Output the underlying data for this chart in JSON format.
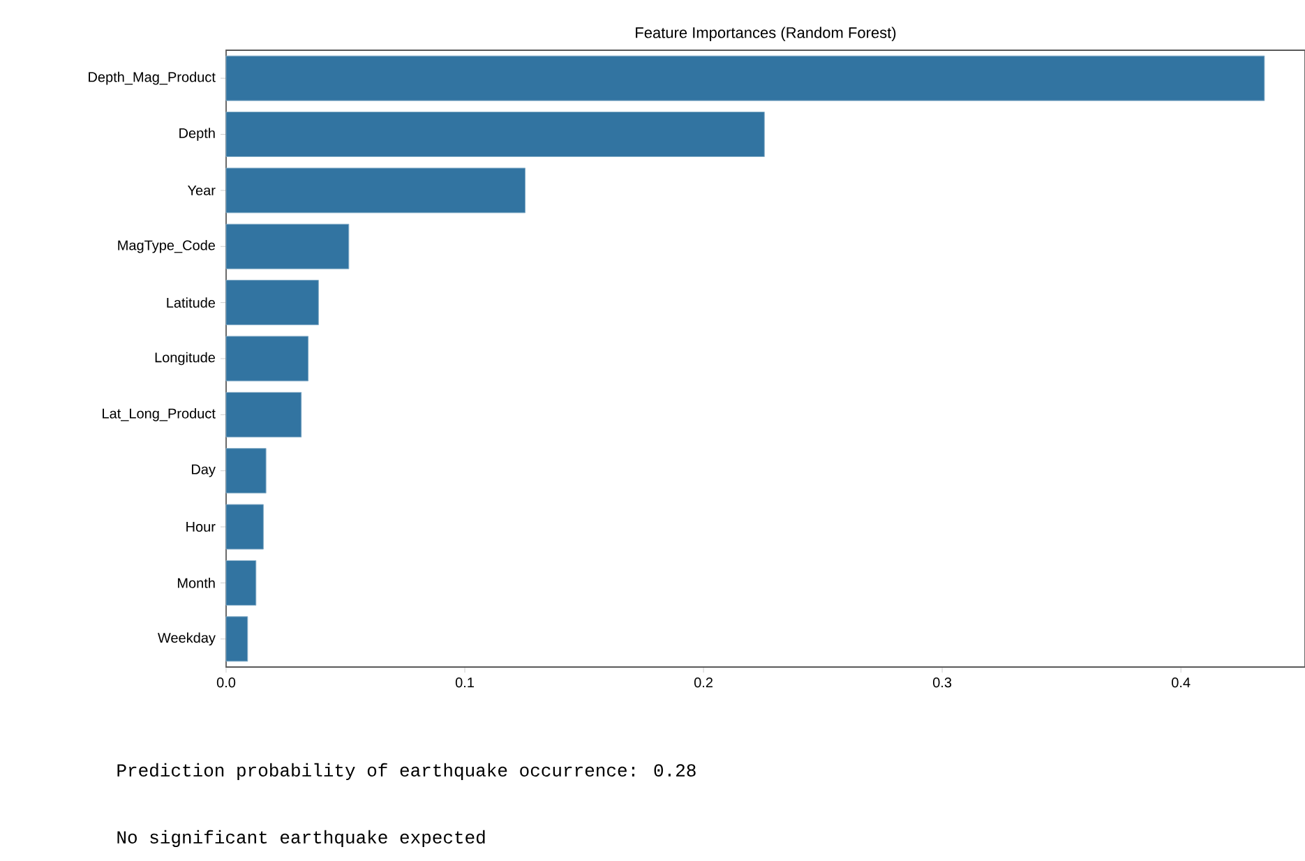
{
  "chart_data": {
    "type": "bar",
    "orientation": "horizontal",
    "title": "Feature Importances (Random Forest)",
    "categories": [
      "Depth_Mag_Product",
      "Depth",
      "Year",
      "MagType_Code",
      "Latitude",
      "Longitude",
      "Lat_Long_Product",
      "Day",
      "Hour",
      "Month",
      "Weekday"
    ],
    "values": [
      0.435,
      0.2255,
      0.1253,
      0.0514,
      0.0387,
      0.0344,
      0.0315,
      0.0167,
      0.0156,
      0.0125,
      0.009
    ],
    "color": "#3274a1",
    "xlim": [
      0,
      0.452
    ],
    "xticks": [
      {
        "value": 0,
        "label": "0.0"
      },
      0.1,
      0.2,
      0.3,
      0.4
    ],
    "annotations": [
      "Prediction probability of earthquake occurrence: 0.28",
      "No significant earthquake expected"
    ]
  }
}
